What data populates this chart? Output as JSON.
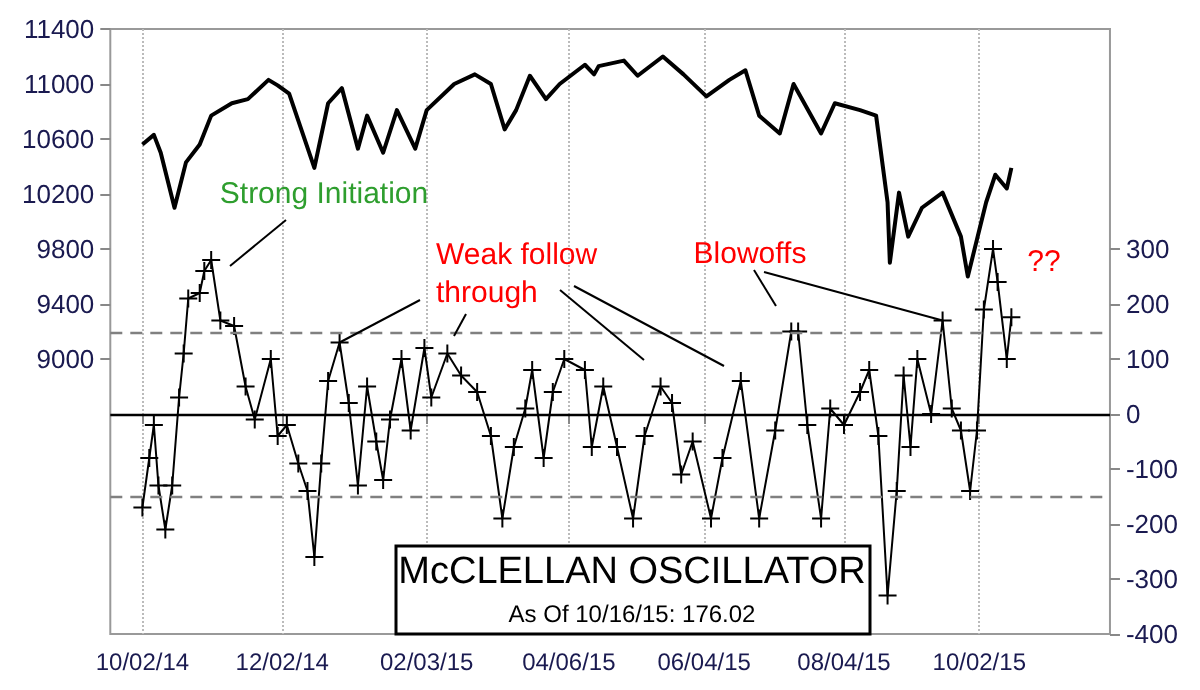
{
  "chart_data": {
    "type": "line",
    "title": "McCLELLAN OSCILLATOR",
    "subtitle": "As Of 10/16/15: 176.02",
    "annotations": [
      "Strong Initiation",
      {
        "text": "Weak follow\nthrough",
        "x": "2014-12-27",
        "y": 9120
      },
      {
        "text": "Blowoffs",
        "x": "2015-09-16",
        "y": 9280
      },
      "??"
    ],
    "series": [
      {
        "color": "#000000",
        "marker": "none",
        "x": [
          "2014-10-02",
          "2014-10-07",
          "2014-10-10",
          "2014-10-16",
          "2014-10-21",
          "2014-10-27",
          "2014-11-01",
          "2014-11-10",
          "2014-11-17",
          "2014-11-26",
          "2014-11-30",
          "2014-12-05",
          "2014-12-16",
          "2014-12-22",
          "2014-12-28",
          "2015-01-04",
          "2015-01-08",
          "2015-01-15",
          "2015-01-21",
          "2015-01-29",
          "2015-02-03",
          "2015-02-15",
          "2015-02-24",
          "2015-03-03",
          "2015-03-09",
          "2015-03-14",
          "2015-03-20",
          "2015-03-27",
          "2015-04-02",
          "2015-04-13",
          "2015-04-17",
          "2015-04-19",
          "2015-04-30",
          "2015-05-06",
          "2015-05-17",
          "2015-05-26",
          "2015-06-05",
          "2015-06-15",
          "2015-06-22",
          "2015-06-28",
          "2015-07-07",
          "2015-07-13",
          "2015-07-25",
          "2015-07-31",
          "2015-08-11",
          "2015-08-18",
          "2015-08-23",
          "2015-08-24",
          "2015-08-28",
          "2015-09-01",
          "2015-09-07",
          "2015-09-16",
          "2015-09-24",
          "2015-09-27",
          "2015-10-05",
          "2015-10-09",
          "2015-10-14",
          "2015-10-16"
        ],
        "values": [
          10560,
          10630,
          10500,
          10100,
          10430,
          10560,
          10770,
          10860,
          10890,
          11030,
          10990,
          10930,
          10390,
          10860,
          10970,
          10530,
          10770,
          10500,
          10810,
          10530,
          10810,
          11000,
          11070,
          11000,
          10670,
          10810,
          11060,
          10890,
          11000,
          11140,
          11070,
          11130,
          11170,
          11060,
          11200,
          11070,
          10910,
          11030,
          11100,
          10770,
          10640,
          11000,
          10640,
          10860,
          10810,
          10770,
          10140,
          9700,
          10210,
          9890,
          10100,
          10210,
          9890,
          9600,
          10140,
          10340,
          10240,
          10390
        ]
      },
      {
        "color": "#000000",
        "marker": "cross",
        "axis": "y2",
        "x": [
          "2014-10-02",
          "2014-10-05",
          "2014-10-07",
          "2014-10-09",
          "2014-10-12",
          "2014-10-15",
          "2014-10-18",
          "2014-10-20",
          "2014-10-22",
          "2014-10-27",
          "2014-10-29",
          "2014-11-01",
          "2014-11-05",
          "2014-11-11",
          "2014-11-16",
          "2014-11-20",
          "2014-11-27",
          "2014-11-30",
          "2014-12-04",
          "2014-12-09",
          "2014-12-13",
          "2014-12-16",
          "2014-12-19",
          "2014-12-22",
          "2014-12-27",
          "2014-12-31",
          "2015-01-04",
          "2015-01-08",
          "2015-01-12",
          "2015-01-15",
          "2015-01-18",
          "2015-01-23",
          "2015-01-27",
          "2015-02-02",
          "2015-02-05",
          "2015-02-12",
          "2015-02-18",
          "2015-02-25",
          "2015-03-03",
          "2015-03-08",
          "2015-03-13",
          "2015-03-18",
          "2015-03-21",
          "2015-03-26",
          "2015-03-30",
          "2015-04-04",
          "2015-04-13",
          "2015-04-16",
          "2015-04-21",
          "2015-04-27",
          "2015-05-04",
          "2015-05-09",
          "2015-05-16",
          "2015-05-21",
          "2015-05-25",
          "2015-05-30",
          "2015-06-07",
          "2015-06-12",
          "2015-06-20",
          "2015-06-28",
          "2015-07-05",
          "2015-07-12",
          "2015-07-15",
          "2015-07-19",
          "2015-07-25",
          "2015-07-29",
          "2015-08-04",
          "2015-08-11",
          "2015-08-15",
          "2015-08-19",
          "2015-08-23",
          "2015-08-27",
          "2015-08-30",
          "2015-09-02",
          "2015-09-05",
          "2015-09-11",
          "2015-09-16",
          "2015-09-20",
          "2015-09-24",
          "2015-09-28",
          "2015-10-01",
          "2015-10-04",
          "2015-10-08",
          "2015-10-10",
          "2015-10-14",
          "2015-10-16"
        ],
        "values": [
          -170,
          -80,
          -20,
          -130,
          -210,
          -130,
          30,
          110,
          210,
          220,
          260,
          280,
          170,
          160,
          50,
          -10,
          100,
          -40,
          -20,
          -90,
          -140,
          -260,
          -90,
          60,
          130,
          20,
          -130,
          50,
          -50,
          -120,
          -10,
          100,
          -30,
          120,
          30,
          110,
          70,
          40,
          -40,
          -190,
          -60,
          10,
          80,
          -80,
          40,
          100,
          80,
          -60,
          50,
          -60,
          -190,
          -40,
          50,
          20,
          -110,
          -50,
          -190,
          -80,
          60,
          -190,
          -30,
          150,
          150,
          -20,
          -190,
          10,
          -20,
          40,
          80,
          -40,
          -330,
          -140,
          70,
          -60,
          100,
          0,
          170,
          10,
          -30,
          -140,
          -30,
          190,
          300,
          240,
          100,
          176
        ]
      }
    ],
    "xlim": [
      "2014-09-18",
      "2015-11-28"
    ],
    "xticks": [
      {
        "value": "2014-10-02",
        "label": "10/02/14"
      },
      {
        "value": "2014-12-02",
        "label": "12/02/14"
      },
      {
        "value": "2015-02-03",
        "label": "02/03/15"
      },
      {
        "value": "2015-04-06",
        "label": "04/06/15"
      },
      {
        "value": "2015-06-04",
        "label": "06/04/15"
      },
      {
        "value": "2015-08-04",
        "label": "08/04/15"
      },
      {
        "value": "2015-10-02",
        "label": "10/02/15"
      }
    ],
    "ylim": [
      7000,
      11400
    ],
    "yticks": [
      9000,
      9400,
      9800,
      10200,
      10600,
      11000,
      11400
    ],
    "y2lim": [
      -400,
      700
    ],
    "y2ticks": [
      -400,
      -300,
      -200,
      -100,
      0,
      100,
      200,
      300
    ],
    "ref_lines": [
      {
        "axis": "y2",
        "value": 0,
        "color": "#000000",
        "line_style": "solid"
      },
      {
        "axis": "y2",
        "value": 150,
        "color": "#808080",
        "line_style": "dashed"
      },
      {
        "axis": "y2",
        "value": -150,
        "color": "#808080",
        "line_style": "dashed"
      }
    ],
    "grid": "x"
  }
}
